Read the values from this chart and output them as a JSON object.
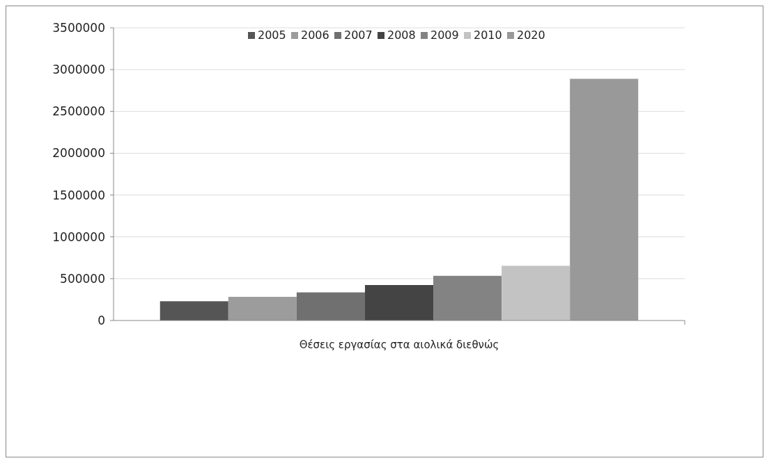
{
  "chart_data": {
    "type": "bar",
    "categories": [
      "Θέσεις εργασίας στα αιολικά διεθνώς"
    ],
    "series": [
      {
        "name": "2005",
        "color": "#555555",
        "values": [
          230000
        ]
      },
      {
        "name": "2006",
        "color": "#9c9c9c",
        "values": [
          283000
        ]
      },
      {
        "name": "2007",
        "color": "#707070",
        "values": [
          336000
        ]
      },
      {
        "name": "2008",
        "color": "#444444",
        "values": [
          424000
        ]
      },
      {
        "name": "2009",
        "color": "#838383",
        "values": [
          534000
        ]
      },
      {
        "name": "2010",
        "color": "#c3c3c3",
        "values": [
          654000
        ]
      },
      {
        "name": "2020",
        "color": "#999999",
        "values": [
          2890000
        ]
      }
    ],
    "ylim": [
      0,
      3500000
    ],
    "yticks": [
      0,
      500000,
      1000000,
      1500000,
      2000000,
      2500000,
      3000000,
      3500000
    ],
    "grid": "y",
    "legend": "top"
  }
}
